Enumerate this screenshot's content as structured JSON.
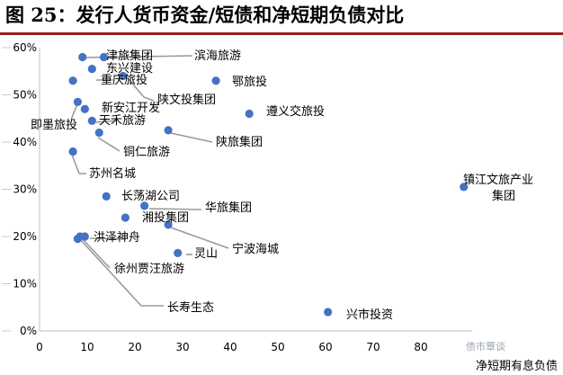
{
  "figure_title": "图 25：发行人货币资金/短债和净短期负债对比",
  "watermark": "债市覃谈",
  "chart_data": {
    "type": "scatter",
    "xlabel": "净短期有息负债",
    "ylabel": "",
    "xlim": [
      0,
      90
    ],
    "ylim": [
      0,
      0.6
    ],
    "x_ticks": [
      0,
      10,
      20,
      30,
      40,
      50,
      60,
      70,
      80
    ],
    "y_ticks": [
      "0%",
      "10%",
      "20%",
      "30%",
      "40%",
      "50%",
      "60%"
    ],
    "grid": false,
    "marker_color": "#4472c4",
    "points": [
      {
        "label": "津旅集团",
        "x": 13.5,
        "y": 0.58
      },
      {
        "label": "滨海旅游",
        "x": 9,
        "y": 0.58
      },
      {
        "label": "东兴建设",
        "x": 11,
        "y": 0.555
      },
      {
        "label": "重庆旅投",
        "x": 7,
        "y": 0.53
      },
      {
        "label": "鄂旅投",
        "x": 37,
        "y": 0.53
      },
      {
        "label": "陕文投集团",
        "x": 17.5,
        "y": 0.54
      },
      {
        "label": "即墨旅投",
        "x": 8,
        "y": 0.485
      },
      {
        "label": "新安江开发",
        "x": 9.5,
        "y": 0.47
      },
      {
        "label": "天禾旅游",
        "x": 11,
        "y": 0.445
      },
      {
        "label": "遵义交旅投",
        "x": 44,
        "y": 0.46
      },
      {
        "label": "铜仁旅游",
        "x": 12.5,
        "y": 0.42
      },
      {
        "label": "陕旅集团",
        "x": 27,
        "y": 0.425
      },
      {
        "label": "苏州名城",
        "x": 7,
        "y": 0.38
      },
      {
        "label": "镇江文旅产业集团",
        "x": 89,
        "y": 0.305
      },
      {
        "label": "长荡湖公司",
        "x": 14,
        "y": 0.285
      },
      {
        "label": "华旅集团",
        "x": 22,
        "y": 0.265
      },
      {
        "label": "湘投集团",
        "x": 18,
        "y": 0.24
      },
      {
        "label": "宁波海城",
        "x": 27,
        "y": 0.225
      },
      {
        "label": "洪泽神舟",
        "x": 8.5,
        "y": 0.2
      },
      {
        "label": "徐州贾汪旅游",
        "x": 9.5,
        "y": 0.2
      },
      {
        "label": "灵山",
        "x": 29,
        "y": 0.165
      },
      {
        "label": "长寿生态",
        "x": 8,
        "y": 0.195
      },
      {
        "label": "兴市投资",
        "x": 60.5,
        "y": 0.04
      }
    ]
  }
}
